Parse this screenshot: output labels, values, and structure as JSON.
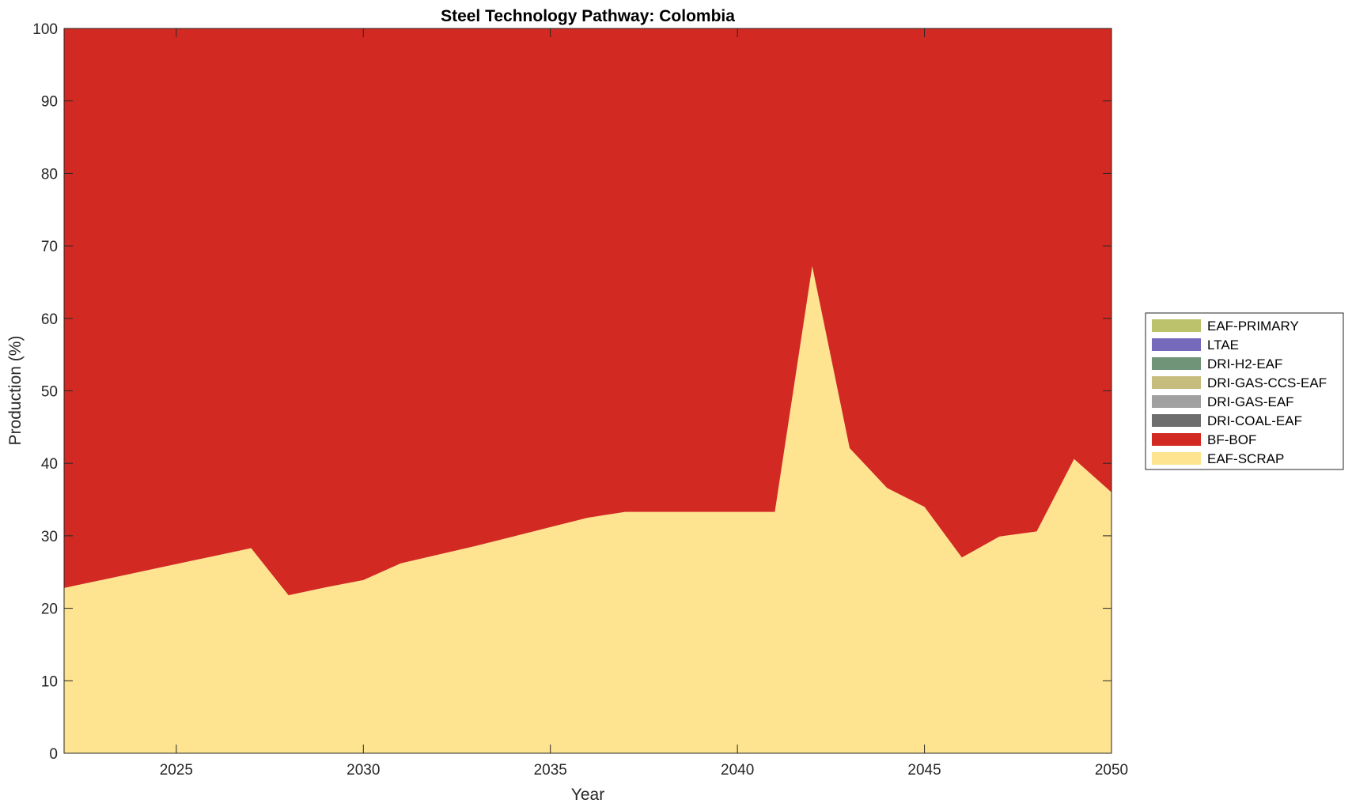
{
  "chart_data": {
    "type": "area",
    "stacked": true,
    "title": "Steel Technology Pathway: Colombia",
    "xlabel": "Year",
    "ylabel": "Production (%)",
    "xlim": [
      2022,
      2050
    ],
    "ylim": [
      0,
      100
    ],
    "xticks": [
      2025,
      2030,
      2035,
      2040,
      2045,
      2050
    ],
    "yticks": [
      0,
      10,
      20,
      30,
      40,
      50,
      60,
      70,
      80,
      90,
      100
    ],
    "grid": false,
    "legend_position": "outside-right",
    "x": [
      2022,
      2023,
      2024,
      2025,
      2026,
      2027,
      2028,
      2029,
      2030,
      2031,
      2032,
      2033,
      2034,
      2035,
      2036,
      2037,
      2038,
      2039,
      2040,
      2041,
      2042,
      2043,
      2044,
      2045,
      2046,
      2047,
      2048,
      2049,
      2050
    ],
    "series": [
      {
        "name": "EAF-SCRAP",
        "color": "#fee391",
        "values": [
          22.8,
          23.9,
          25.0,
          26.1,
          27.2,
          28.3,
          21.8,
          22.9,
          23.9,
          26.2,
          27.4,
          28.6,
          29.9,
          31.2,
          32.5,
          33.3,
          33.3,
          33.3,
          33.3,
          33.3,
          67.2,
          42.1,
          36.6,
          34.0,
          27.0,
          29.9,
          30.6,
          40.6,
          36.0
        ]
      },
      {
        "name": "BF-BOF",
        "color": "#d22a22",
        "values": [
          77.2,
          76.1,
          75.0,
          73.9,
          72.8,
          71.7,
          78.2,
          77.1,
          76.1,
          73.8,
          72.6,
          71.4,
          70.1,
          68.8,
          67.5,
          66.7,
          66.7,
          66.7,
          66.7,
          66.7,
          32.8,
          57.9,
          63.4,
          66.0,
          73.0,
          70.1,
          69.4,
          59.4,
          64.0
        ]
      },
      {
        "name": "DRI-COAL-EAF",
        "color": "#6e6e6e",
        "values": [
          0,
          0,
          0,
          0,
          0,
          0,
          0,
          0,
          0,
          0,
          0,
          0,
          0,
          0,
          0,
          0,
          0,
          0,
          0,
          0,
          0,
          0,
          0,
          0,
          0,
          0,
          0,
          0,
          0
        ]
      },
      {
        "name": "DRI-GAS-EAF",
        "color": "#a0a0a0",
        "values": [
          0,
          0,
          0,
          0,
          0,
          0,
          0,
          0,
          0,
          0,
          0,
          0,
          0,
          0,
          0,
          0,
          0,
          0,
          0,
          0,
          0,
          0,
          0,
          0,
          0,
          0,
          0,
          0,
          0
        ]
      },
      {
        "name": "DRI-GAS-CCS-EAF",
        "color": "#c6bc7e",
        "values": [
          0,
          0,
          0,
          0,
          0,
          0,
          0,
          0,
          0,
          0,
          0,
          0,
          0,
          0,
          0,
          0,
          0,
          0,
          0,
          0,
          0,
          0,
          0,
          0,
          0,
          0,
          0,
          0,
          0
        ]
      },
      {
        "name": "DRI-H2-EAF",
        "color": "#6f9478",
        "values": [
          0,
          0,
          0,
          0,
          0,
          0,
          0,
          0,
          0,
          0,
          0,
          0,
          0,
          0,
          0,
          0,
          0,
          0,
          0,
          0,
          0,
          0,
          0,
          0,
          0,
          0,
          0,
          0,
          0
        ]
      },
      {
        "name": "LTAE",
        "color": "#7469bb",
        "values": [
          0,
          0,
          0,
          0,
          0,
          0,
          0,
          0,
          0,
          0,
          0,
          0,
          0,
          0,
          0,
          0,
          0,
          0,
          0,
          0,
          0,
          0,
          0,
          0,
          0,
          0,
          0,
          0,
          0
        ]
      },
      {
        "name": "EAF-PRIMARY",
        "color": "#bcc26b",
        "values": [
          0,
          0,
          0,
          0,
          0,
          0,
          0,
          0,
          0,
          0,
          0,
          0,
          0,
          0,
          0,
          0,
          0,
          0,
          0,
          0,
          0,
          0,
          0,
          0,
          0,
          0,
          0,
          0,
          0
        ]
      }
    ],
    "legend_order": [
      "EAF-PRIMARY",
      "LTAE",
      "DRI-H2-EAF",
      "DRI-GAS-CCS-EAF",
      "DRI-GAS-EAF",
      "DRI-COAL-EAF",
      "BF-BOF",
      "EAF-SCRAP"
    ]
  }
}
